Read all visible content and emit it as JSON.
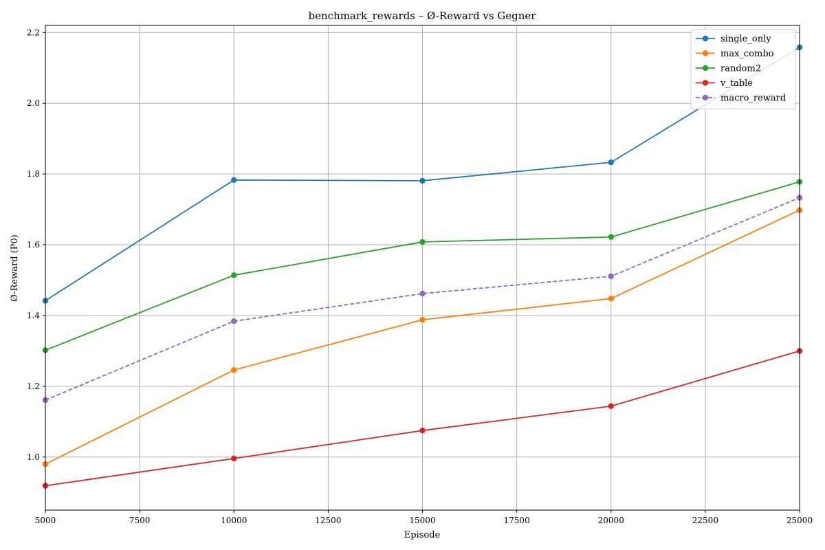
{
  "chart_data": {
    "type": "line",
    "title": "benchmark_rewards – Ø-Reward vs Gegner",
    "xlabel": "Episode",
    "ylabel": "Ø-Reward (P0)",
    "xlim": [
      5000,
      25000
    ],
    "ylim": [
      0.85,
      2.22
    ],
    "x_ticks": [
      5000,
      7500,
      10000,
      12500,
      15000,
      17500,
      20000,
      22500,
      25000
    ],
    "y_ticks": [
      1.0,
      1.2,
      1.4,
      1.6,
      1.8,
      2.0,
      2.2
    ],
    "y_tick_labels": [
      "1.0",
      "1.2",
      "1.4",
      "1.6",
      "1.8",
      "2.0",
      "2.2"
    ],
    "grid": true,
    "legend_position": "top-right",
    "x": [
      5000,
      10000,
      15000,
      20000,
      25000
    ],
    "series": [
      {
        "name": "single_only",
        "color": "#1f77b4",
        "dashed": false,
        "values": [
          1.442,
          1.783,
          1.781,
          1.833,
          2.158
        ]
      },
      {
        "name": "max_combo",
        "color": "#ff7f0e",
        "dashed": false,
        "values": [
          0.98,
          1.246,
          1.388,
          1.448,
          1.698
        ]
      },
      {
        "name": "random2",
        "color": "#2ca02c",
        "dashed": false,
        "values": [
          1.302,
          1.514,
          1.608,
          1.622,
          1.778
        ]
      },
      {
        "name": "v_table",
        "color": "#d62728",
        "dashed": false,
        "values": [
          0.919,
          0.996,
          1.075,
          1.144,
          1.3
        ]
      },
      {
        "name": "macro_reward",
        "color": "#9467bd",
        "dashed": true,
        "values": [
          1.161,
          1.384,
          1.462,
          1.511,
          1.733
        ]
      }
    ]
  }
}
